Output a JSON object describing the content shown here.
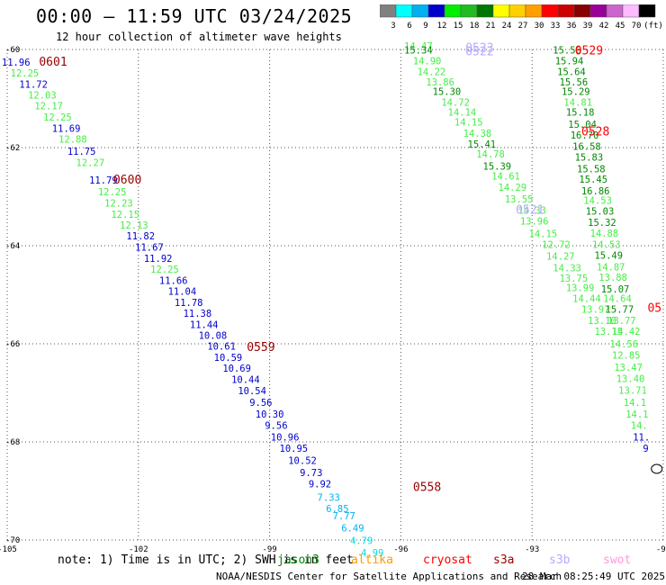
{
  "header": {
    "title": "00:00 – 11:59 UTC 03/24/2025",
    "subtitle": "12 hour collection of altimeter wave heights"
  },
  "colorbar": {
    "labels": [
      "3",
      "6",
      "9",
      "12",
      "15",
      "18",
      "21",
      "24",
      "27",
      "30",
      "33",
      "36",
      "39",
      "42",
      "45",
      "70",
      "(ft)"
    ],
    "colors": [
      "#808080",
      "#00ffff",
      "#00b0f0",
      "#0000cc",
      "#00ee00",
      "#22bb22",
      "#007700",
      "#ffff00",
      "#ffd000",
      "#ffa000",
      "#ff0000",
      "#cc0000",
      "#880000",
      "#990099",
      "#cc66cc",
      "#ffbbff",
      "#000000"
    ]
  },
  "chart_data": {
    "type": "map",
    "lon_range": [
      -105,
      -90
    ],
    "lat_range": [
      -70,
      -60
    ],
    "lon_ticks": [
      "-105",
      "-102",
      "-99",
      "-96",
      "-93",
      "-90"
    ],
    "lat_ticks": [
      "-60",
      "-62",
      "-64",
      "-66",
      "-68",
      "-70"
    ],
    "grid": "dotted",
    "time_labels": [
      {
        "text": "0601",
        "lon": -103.95,
        "lat": -60.33,
        "color": "#990000"
      },
      {
        "text": "0600",
        "lon": -102.25,
        "lat": -62.73,
        "color": "#990000"
      },
      {
        "text": "0559",
        "lon": -99.2,
        "lat": -66.15,
        "color": "#990000"
      },
      {
        "text": "0558",
        "lon": -95.4,
        "lat": -69.0,
        "color": "#990000"
      },
      {
        "text": "0523",
        "lon": -94.2,
        "lat": -60.05,
        "color": "#b8a8ff"
      },
      {
        "text": "0522",
        "lon": -94.2,
        "lat": -60.12,
        "color": "#b8a8ff"
      },
      {
        "text": "0521",
        "lon": -93.05,
        "lat": -63.35,
        "color": "#b8a8ff"
      },
      {
        "text": "0529",
        "lon": -91.7,
        "lat": -60.1,
        "color": "#ff0000"
      },
      {
        "text": "0528",
        "lon": -91.55,
        "lat": -61.75,
        "color": "#ff0000"
      },
      {
        "text": "05",
        "lon": -90.2,
        "lat": -65.35,
        "color": "#ff0000"
      }
    ],
    "series": [
      {
        "name": "track-0600",
        "points": [
          {
            "lon": -104.8,
            "lat": -60.33,
            "v": "11.96",
            "c": "#0000cc"
          },
          {
            "lon": -104.6,
            "lat": -60.55,
            "v": "12.25",
            "c": "#44ee44"
          },
          {
            "lon": -104.4,
            "lat": -60.78,
            "v": "11.72",
            "c": "#0000cc"
          },
          {
            "lon": -104.2,
            "lat": -61.0,
            "v": "12.03",
            "c": "#44ee44"
          },
          {
            "lon": -104.05,
            "lat": -61.22,
            "v": "12.17",
            "c": "#44ee44"
          },
          {
            "lon": -103.85,
            "lat": -61.45,
            "v": "12.25",
            "c": "#44ee44"
          },
          {
            "lon": -103.65,
            "lat": -61.68,
            "v": "11.69",
            "c": "#0000cc"
          },
          {
            "lon": -103.5,
            "lat": -61.9,
            "v": "12.88",
            "c": "#44ee44"
          },
          {
            "lon": -103.3,
            "lat": -62.15,
            "v": "11.75",
            "c": "#0000cc"
          },
          {
            "lon": -103.1,
            "lat": -62.38,
            "v": "12.27",
            "c": "#44ee44"
          },
          {
            "lon": -102.8,
            "lat": -62.73,
            "v": "11.79",
            "c": "#0000cc"
          },
          {
            "lon": -102.6,
            "lat": -62.97,
            "v": "12.25",
            "c": "#44ee44"
          },
          {
            "lon": -102.45,
            "lat": -63.2,
            "v": "12.23",
            "c": "#44ee44"
          },
          {
            "lon": -102.3,
            "lat": -63.43,
            "v": "12.15",
            "c": "#44ee44"
          },
          {
            "lon": -102.1,
            "lat": -63.65,
            "v": "12.13",
            "c": "#44ee44"
          },
          {
            "lon": -101.95,
            "lat": -63.87,
            "v": "11.82",
            "c": "#0000cc"
          },
          {
            "lon": -101.75,
            "lat": -64.1,
            "v": "11.67",
            "c": "#0000cc"
          },
          {
            "lon": -101.55,
            "lat": -64.33,
            "v": "11.92",
            "c": "#0000cc"
          },
          {
            "lon": -101.4,
            "lat": -64.55,
            "v": "12.25",
            "c": "#44ee44"
          },
          {
            "lon": -101.2,
            "lat": -64.78,
            "v": "11.66",
            "c": "#0000cc"
          },
          {
            "lon": -101.0,
            "lat": -65.0,
            "v": "11.04",
            "c": "#0000cc"
          },
          {
            "lon": -100.85,
            "lat": -65.23,
            "v": "11.78",
            "c": "#0000cc"
          },
          {
            "lon": -100.65,
            "lat": -65.45,
            "v": "11.38",
            "c": "#0000cc"
          },
          {
            "lon": -100.5,
            "lat": -65.68,
            "v": "11.44",
            "c": "#0000cc"
          },
          {
            "lon": -100.3,
            "lat": -65.9,
            "v": "10.08",
            "c": "#0000cc"
          },
          {
            "lon": -100.1,
            "lat": -66.12,
            "v": "10.61",
            "c": "#0000cc"
          },
          {
            "lon": -99.95,
            "lat": -66.35,
            "v": "10.59",
            "c": "#0000cc"
          },
          {
            "lon": -99.75,
            "lat": -66.57,
            "v": "10.69",
            "c": "#0000cc"
          },
          {
            "lon": -99.55,
            "lat": -66.8,
            "v": "10.44",
            "c": "#0000cc"
          },
          {
            "lon": -99.4,
            "lat": -67.03,
            "v": "10.54",
            "c": "#0000cc"
          },
          {
            "lon": -99.2,
            "lat": -67.27,
            "v": "9.56",
            "c": "#0000cc"
          },
          {
            "lon": -99.0,
            "lat": -67.5,
            "v": "10.30",
            "c": "#0000cc"
          },
          {
            "lon": -98.85,
            "lat": -67.73,
            "v": "9.56",
            "c": "#0000cc"
          },
          {
            "lon": -98.65,
            "lat": -67.97,
            "v": "10.96",
            "c": "#0000cc"
          },
          {
            "lon": -98.45,
            "lat": -68.2,
            "v": "10.95",
            "c": "#0000cc"
          },
          {
            "lon": -98.25,
            "lat": -68.45,
            "v": "10.52",
            "c": "#0000cc"
          },
          {
            "lon": -98.05,
            "lat": -68.7,
            "v": "9.73",
            "c": "#0000cc"
          },
          {
            "lon": -97.85,
            "lat": -68.93,
            "v": "9.92",
            "c": "#0000cc"
          },
          {
            "lon": -97.65,
            "lat": -69.2,
            "v": "7.33",
            "c": "#00b0f0"
          },
          {
            "lon": -97.45,
            "lat": -69.43,
            "v": "6.85",
            "c": "#00b0f0"
          },
          {
            "lon": -97.3,
            "lat": -69.58,
            "v": "7.77",
            "c": "#00b0f0"
          },
          {
            "lon": -97.1,
            "lat": -69.83,
            "v": "6.49",
            "c": "#00b0f0"
          },
          {
            "lon": -96.9,
            "lat": -70.08,
            "v": "4.79",
            "c": "#00e0e0"
          },
          {
            "lon": -96.65,
            "lat": -70.33,
            "v": "4.99",
            "c": "#00e0e0"
          }
        ]
      },
      {
        "name": "track-0522",
        "points": [
          {
            "lon": -95.6,
            "lat": -60.0,
            "v": "14.47",
            "c": "#44ee44"
          },
          {
            "lon": -95.6,
            "lat": -60.08,
            "v": "15.34",
            "c": "#008800"
          },
          {
            "lon": -95.4,
            "lat": -60.3,
            "v": "14.90",
            "c": "#44ee44"
          },
          {
            "lon": -95.3,
            "lat": -60.52,
            "v": "14.22",
            "c": "#44ee44"
          },
          {
            "lon": -95.1,
            "lat": -60.73,
            "v": "13.86",
            "c": "#44ee44"
          },
          {
            "lon": -94.95,
            "lat": -60.93,
            "v": "15.30",
            "c": "#008800"
          },
          {
            "lon": -94.75,
            "lat": -61.15,
            "v": "14.72",
            "c": "#44ee44"
          },
          {
            "lon": -94.6,
            "lat": -61.35,
            "v": "14.14",
            "c": "#44ee44"
          },
          {
            "lon": -94.45,
            "lat": -61.55,
            "v": "14.15",
            "c": "#44ee44"
          },
          {
            "lon": -94.25,
            "lat": -61.78,
            "v": "14.38",
            "c": "#44ee44"
          },
          {
            "lon": -94.15,
            "lat": -62.0,
            "v": "15.41",
            "c": "#008800"
          },
          {
            "lon": -93.95,
            "lat": -62.2,
            "v": "14.78",
            "c": "#44ee44"
          },
          {
            "lon": -93.8,
            "lat": -62.45,
            "v": "15.39",
            "c": "#008800"
          },
          {
            "lon": -93.6,
            "lat": -62.65,
            "v": "14.61",
            "c": "#44ee44"
          },
          {
            "lon": -93.45,
            "lat": -62.88,
            "v": "14.29",
            "c": "#44ee44"
          },
          {
            "lon": -93.3,
            "lat": -63.12,
            "v": "13.55",
            "c": "#44ee44"
          },
          {
            "lon": -93.0,
            "lat": -63.35,
            "v": "14.33",
            "c": "#44ee44"
          },
          {
            "lon": -92.95,
            "lat": -63.57,
            "v": "13.96",
            "c": "#44ee44"
          },
          {
            "lon": -92.75,
            "lat": -63.83,
            "v": "14.15",
            "c": "#44ee44"
          },
          {
            "lon": -92.45,
            "lat": -64.05,
            "v": "12.72",
            "c": "#44ee44"
          },
          {
            "lon": -92.35,
            "lat": -64.28,
            "v": "14.27",
            "c": "#44ee44"
          },
          {
            "lon": -92.2,
            "lat": -64.52,
            "v": "14.33",
            "c": "#44ee44"
          },
          {
            "lon": -92.05,
            "lat": -64.73,
            "v": "13.75",
            "c": "#44ee44"
          },
          {
            "lon": -91.9,
            "lat": -64.93,
            "v": "13.99",
            "c": "#44ee44"
          },
          {
            "lon": -91.75,
            "lat": -65.15,
            "v": "14.44",
            "c": "#44ee44"
          },
          {
            "lon": -91.55,
            "lat": -65.37,
            "v": "13.97",
            "c": "#44ee44"
          },
          {
            "lon": -91.4,
            "lat": -65.6,
            "v": "13.10",
            "c": "#44ee44"
          },
          {
            "lon": -91.25,
            "lat": -65.82,
            "v": "13.15",
            "c": "#44ee44"
          }
        ]
      },
      {
        "name": "track-0528",
        "points": [
          {
            "lon": -92.2,
            "lat": -60.08,
            "v": "15.56",
            "c": "#008800"
          },
          {
            "lon": -92.15,
            "lat": -60.3,
            "v": "15.94",
            "c": "#008800"
          },
          {
            "lon": -92.1,
            "lat": -60.52,
            "v": "15.64",
            "c": "#008800"
          },
          {
            "lon": -92.05,
            "lat": -60.73,
            "v": "15.56",
            "c": "#008800"
          },
          {
            "lon": -92.0,
            "lat": -60.93,
            "v": "15.29",
            "c": "#008800"
          },
          {
            "lon": -91.95,
            "lat": -61.15,
            "v": "14.81",
            "c": "#44ee44"
          },
          {
            "lon": -91.9,
            "lat": -61.35,
            "v": "15.18",
            "c": "#008800"
          },
          {
            "lon": -91.85,
            "lat": -61.6,
            "v": "15.04",
            "c": "#008800"
          },
          {
            "lon": -91.8,
            "lat": -61.82,
            "v": "16.70",
            "c": "#008800"
          },
          {
            "lon": -91.75,
            "lat": -62.05,
            "v": "16.58",
            "c": "#008800"
          },
          {
            "lon": -91.7,
            "lat": -62.27,
            "v": "15.83",
            "c": "#008800"
          },
          {
            "lon": -91.65,
            "lat": -62.5,
            "v": "15.58",
            "c": "#008800"
          },
          {
            "lon": -91.6,
            "lat": -62.72,
            "v": "15.45",
            "c": "#008800"
          },
          {
            "lon": -91.55,
            "lat": -62.95,
            "v": "16.86",
            "c": "#008800"
          },
          {
            "lon": -91.5,
            "lat": -63.15,
            "v": "14.53",
            "c": "#44ee44"
          },
          {
            "lon": -91.45,
            "lat": -63.37,
            "v": "15.03",
            "c": "#008800"
          },
          {
            "lon": -91.4,
            "lat": -63.6,
            "v": "15.32",
            "c": "#008800"
          },
          {
            "lon": -91.35,
            "lat": -63.82,
            "v": "14.88",
            "c": "#44ee44"
          },
          {
            "lon": -91.3,
            "lat": -64.05,
            "v": "14.53",
            "c": "#44ee44"
          },
          {
            "lon": -91.25,
            "lat": -64.27,
            "v": "15.49",
            "c": "#008800"
          },
          {
            "lon": -91.2,
            "lat": -64.5,
            "v": "14.87",
            "c": "#44ee44"
          },
          {
            "lon": -91.15,
            "lat": -64.72,
            "v": "13.88",
            "c": "#44ee44"
          },
          {
            "lon": -91.1,
            "lat": -64.95,
            "v": "15.07",
            "c": "#008800"
          },
          {
            "lon": -91.05,
            "lat": -65.15,
            "v": "14.64",
            "c": "#44ee44"
          },
          {
            "lon": -91.0,
            "lat": -65.37,
            "v": "15.77",
            "c": "#008800"
          },
          {
            "lon": -90.95,
            "lat": -65.6,
            "v": "13.77",
            "c": "#44ee44"
          },
          {
            "lon": -90.85,
            "lat": -65.82,
            "v": "14.42",
            "c": "#44ee44"
          },
          {
            "lon": -90.9,
            "lat": -66.07,
            "v": "14.56",
            "c": "#44ee44"
          },
          {
            "lon": -90.85,
            "lat": -66.3,
            "v": "12.85",
            "c": "#44ee44"
          },
          {
            "lon": -90.8,
            "lat": -66.55,
            "v": "13.47",
            "c": "#44ee44"
          },
          {
            "lon": -90.75,
            "lat": -66.78,
            "v": "13.40",
            "c": "#44ee44"
          },
          {
            "lon": -90.7,
            "lat": -67.02,
            "v": "13.71",
            "c": "#44ee44"
          },
          {
            "lon": -90.65,
            "lat": -67.27,
            "v": "14.1",
            "c": "#44ee44"
          },
          {
            "lon": -90.6,
            "lat": -67.5,
            "v": "14.1",
            "c": "#44ee44"
          },
          {
            "lon": -90.55,
            "lat": -67.73,
            "v": "14.",
            "c": "#44ee44"
          },
          {
            "lon": -90.5,
            "lat": -67.97,
            "v": "11.",
            "c": "#0000cc"
          },
          {
            "lon": -90.4,
            "lat": -68.2,
            "v": "9",
            "c": "#0000cc"
          }
        ]
      }
    ]
  },
  "note": {
    "prefix": "note: 1) Time is in UTC; 2) SWH is in feet",
    "satellites": [
      {
        "name": "jason3",
        "color": "#008800"
      },
      {
        "name": "altika",
        "color": "#ff9900"
      },
      {
        "name": "cryosat",
        "color": "#ff0000"
      },
      {
        "name": "s3a",
        "color": "#990000"
      },
      {
        "name": "s3b",
        "color": "#b8a8ff"
      },
      {
        "name": "swot",
        "color": "#ff99dd"
      }
    ]
  },
  "footer": {
    "credit": "NOAA/NESDIS Center for Satellite Applications and Research",
    "updated": "28 Mar 08:25:49 UTC 2025"
  }
}
